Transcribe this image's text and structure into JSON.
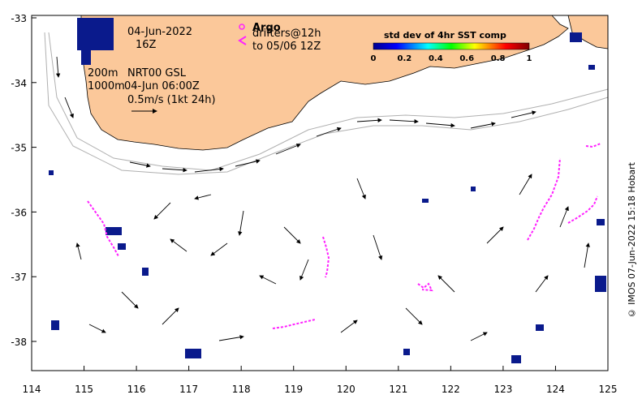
{
  "map": {
    "date": "04-Jun-2022",
    "time": "16Z",
    "contour_200": "200m",
    "contour_1000": "1000m",
    "product": "NRT00 GSL",
    "product_time": "04-Jun 06:00Z",
    "scale_label": "0.5m/s (1kt 24h)",
    "argo_label": "Argo",
    "drifters_line1": "drifters@12h",
    "drifters_line2": "to 05/06 12Z",
    "colorbar_title": "std dev of 4hr SST comp",
    "colorbar_ticks": [
      "0",
      "0.2",
      "0.4",
      "0.6",
      "0.8",
      "1"
    ],
    "credit": "© IMOS 07-Jun-2022 15:18 Hobart",
    "lon_ticks": [
      "114",
      "115",
      "116",
      "117",
      "118",
      "119",
      "120",
      "121",
      "122",
      "123",
      "124",
      "125"
    ],
    "lat_ticks": [
      "-33",
      "-34",
      "-35",
      "-36",
      "-37",
      "-38"
    ],
    "colors": {
      "land": "#fbc89a",
      "drifter": "#ff22ff",
      "sst_patch": "#0a1a8c",
      "bathy": "#b0b0b0"
    }
  }
}
